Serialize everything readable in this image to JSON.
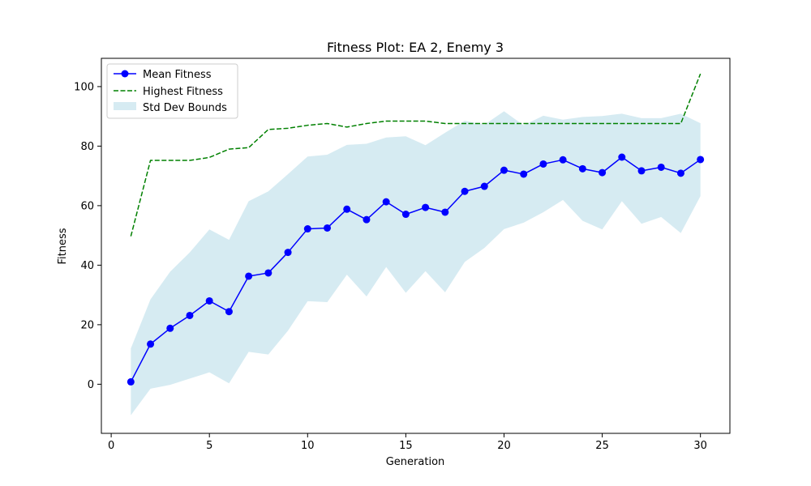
{
  "chart_data": {
    "type": "line",
    "title": "Fitness Plot: EA 2, Enemy 3",
    "xlabel": "Generation",
    "ylabel": "Fitness",
    "xlim": [
      -0.5,
      31.5
    ],
    "ylim": [
      -16.5,
      109.5
    ],
    "xticks": [
      0,
      5,
      10,
      15,
      20,
      25,
      30
    ],
    "yticks": [
      0,
      20,
      40,
      60,
      80,
      100
    ],
    "grid": false,
    "legend_position": "upper-left",
    "x": [
      1,
      2,
      3,
      4,
      5,
      6,
      7,
      8,
      9,
      10,
      11,
      12,
      13,
      14,
      15,
      16,
      17,
      18,
      19,
      20,
      21,
      22,
      23,
      24,
      25,
      26,
      27,
      28,
      29,
      30
    ],
    "series": [
      {
        "name": "Mean Fitness",
        "style": "line-marker",
        "color": "#0000ff",
        "values": [
          0.8,
          13.5,
          18.8,
          23.1,
          28.0,
          24.4,
          36.3,
          37.4,
          44.3,
          52.2,
          52.5,
          58.8,
          55.3,
          61.3,
          57.1,
          59.4,
          57.8,
          64.8,
          66.5,
          71.9,
          70.6,
          74.0,
          75.4,
          72.4,
          71.1,
          76.3,
          71.7,
          72.9,
          70.9,
          75.5
        ]
      },
      {
        "name": "Highest Fitness",
        "style": "dashed",
        "color": "#008000",
        "values": [
          49.7,
          75.2,
          75.2,
          75.2,
          76.2,
          79.0,
          79.5,
          85.6,
          86.0,
          87.0,
          87.6,
          86.4,
          87.6,
          88.4,
          88.4,
          88.4,
          87.6,
          87.6,
          87.6,
          87.6,
          87.6,
          87.6,
          87.6,
          87.6,
          87.6,
          87.6,
          87.6,
          87.6,
          87.6,
          104.3
        ]
      }
    ],
    "band": {
      "name": "Std Dev Bounds",
      "color": "#add8e6",
      "opacity": 0.5,
      "upper": [
        12.0,
        28.5,
        37.8,
        44.3,
        52.0,
        48.5,
        61.5,
        64.8,
        70.6,
        76.5,
        77.1,
        80.4,
        80.8,
        82.9,
        83.3,
        80.3,
        84.5,
        88.5,
        87.2,
        91.7,
        87.0,
        90.2,
        88.9,
        89.8,
        90.1,
        90.9,
        89.4,
        89.4,
        90.9,
        87.7
      ],
      "lower": [
        -10.4,
        -1.5,
        -0.2,
        1.9,
        4.0,
        0.3,
        10.9,
        10.0,
        18.0,
        27.9,
        27.6,
        36.8,
        29.5,
        39.4,
        30.7,
        38.0,
        30.9,
        41.1,
        45.8,
        52.1,
        54.3,
        57.8,
        61.9,
        54.9,
        52.0,
        61.5,
        53.9,
        56.2,
        50.8,
        63.2
      ]
    }
  }
}
